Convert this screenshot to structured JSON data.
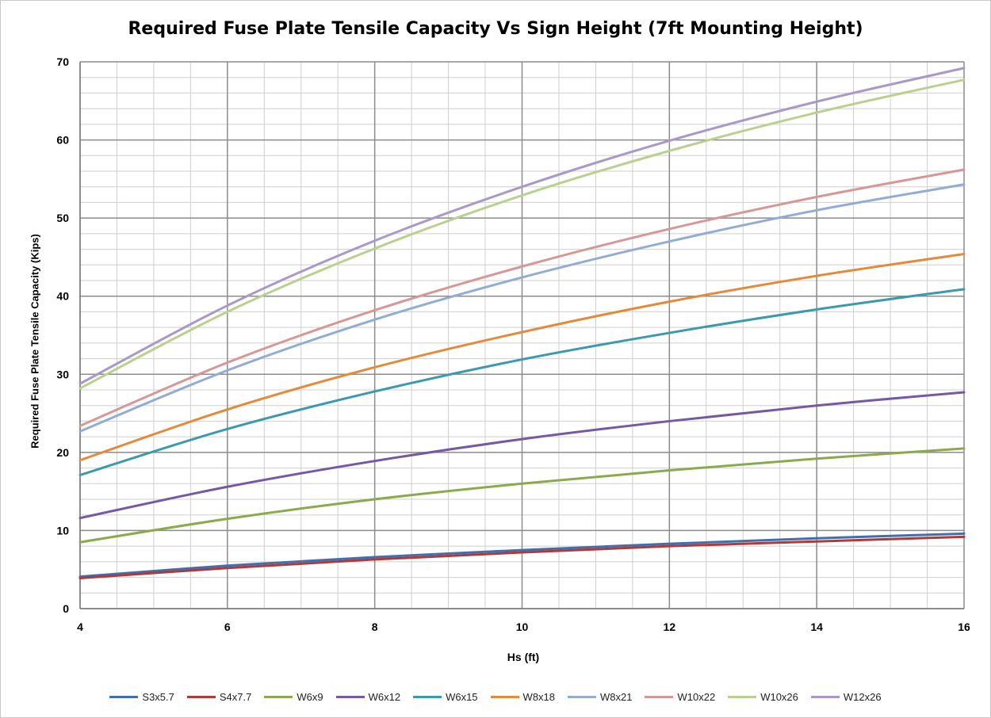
{
  "chart_data": {
    "type": "line",
    "title": "Required Fuse Plate Tensile Capacity Vs Sign Height (7ft Mounting Height)",
    "xlabel": "Hs (ft)",
    "ylabel": "Required Fuse Plate Tensile Capacity (Kips)",
    "xlim": [
      4,
      16
    ],
    "ylim": [
      0,
      70
    ],
    "x_ticks": [
      4,
      6,
      8,
      10,
      12,
      14,
      16
    ],
    "y_ticks": [
      0,
      10,
      20,
      30,
      40,
      50,
      60,
      70
    ],
    "grid": true,
    "legend_position": "bottom",
    "x": [
      4,
      6,
      8,
      10,
      12,
      14,
      16
    ],
    "series": [
      {
        "name": "S3x5.7",
        "color": "#3f6fb0",
        "values": [
          4.1,
          5.5,
          6.6,
          7.5,
          8.3,
          9.0,
          9.6
        ]
      },
      {
        "name": "S4x7.7",
        "color": "#b03a37",
        "values": [
          3.9,
          5.2,
          6.3,
          7.2,
          8.0,
          8.6,
          9.2
        ]
      },
      {
        "name": "W6x9",
        "color": "#8aaa4b",
        "values": [
          8.5,
          11.5,
          14.0,
          16.0,
          17.7,
          19.2,
          20.5
        ]
      },
      {
        "name": "W6x12",
        "color": "#7559a2",
        "values": [
          11.6,
          15.6,
          18.9,
          21.7,
          24.0,
          26.0,
          27.7
        ]
      },
      {
        "name": "W6x15",
        "color": "#3b9aad",
        "values": [
          17.1,
          23.0,
          27.8,
          31.9,
          35.3,
          38.3,
          40.9
        ]
      },
      {
        "name": "W8x18",
        "color": "#e48a3a",
        "values": [
          19.0,
          25.5,
          30.9,
          35.4,
          39.3,
          42.6,
          45.4
        ]
      },
      {
        "name": "W8x21",
        "color": "#92acd6",
        "values": [
          22.7,
          30.5,
          37.0,
          42.4,
          47.0,
          51.0,
          54.3
        ]
      },
      {
        "name": "W10x22",
        "color": "#d69896",
        "values": [
          23.4,
          31.5,
          38.2,
          43.8,
          48.6,
          52.7,
          56.2
        ]
      },
      {
        "name": "W10x26",
        "color": "#b9d08f",
        "values": [
          28.2,
          38.0,
          46.1,
          52.9,
          58.6,
          63.5,
          67.7
        ]
      },
      {
        "name": "W12x26",
        "color": "#aa98c8",
        "values": [
          28.8,
          38.8,
          47.1,
          54.0,
          59.9,
          64.9,
          69.2
        ]
      }
    ]
  }
}
